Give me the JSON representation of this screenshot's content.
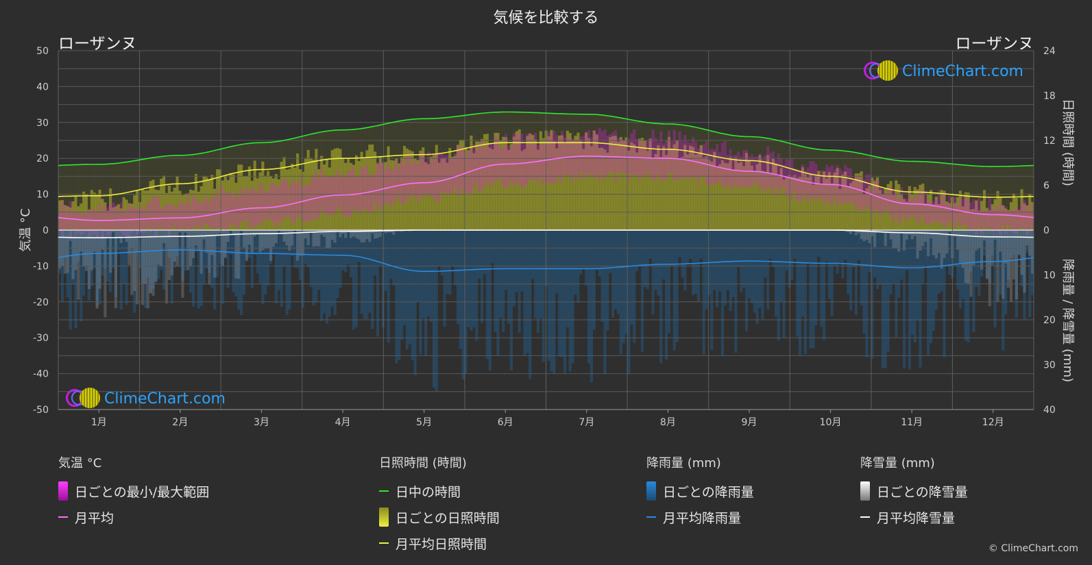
{
  "header": {
    "title": "気候を比較する",
    "city_left": "ローザンヌ",
    "city_right": "ローザンヌ"
  },
  "logo_text": "ClimeChart.com",
  "copyright": "© ClimeChart.com",
  "colors": {
    "background": "#2d2d2d",
    "temp_range": "#e020e0",
    "temp_avg": "#ff70ff",
    "daylight": "#2ee82e",
    "sunshine_bar": "#b8b82a",
    "sunshine_avg": "#f0f040",
    "rain_bar": "#1f6fb0",
    "rain_avg": "#2a8ae0",
    "snow_bar": "#bbbbbb",
    "snow_avg": "#ffffff",
    "logo_text": "#2aa4ff"
  },
  "legend": {
    "temperature": {
      "title": "気温 °C",
      "items": [
        "日ごとの最小/最大範囲",
        "月平均"
      ]
    },
    "sunshine": {
      "title": "日照時間 (時間)",
      "items": [
        "日中の時間",
        "日ごとの日照時間",
        "月平均日照時間"
      ]
    },
    "rain": {
      "title": "降雨量 (mm)",
      "items": [
        "日ごとの降雨量",
        "月平均降雨量"
      ]
    },
    "snow": {
      "title": "降雪量 (mm)",
      "items": [
        "日ごとの降雪量",
        "月平均降雪量"
      ]
    }
  },
  "chart_data": {
    "type": "line",
    "title": "気候を比較する",
    "categories": [
      "1月",
      "2月",
      "3月",
      "4月",
      "5月",
      "6月",
      "7月",
      "8月",
      "9月",
      "10月",
      "11月",
      "12月"
    ],
    "y_left": {
      "label": "気温 °C",
      "range": [
        -50,
        50
      ],
      "ticks": [
        50,
        40,
        30,
        20,
        10,
        0,
        -10,
        -20,
        -30,
        -40,
        -50
      ]
    },
    "y_right_top": {
      "label": "日照時間 (時間)",
      "range": [
        0,
        24
      ],
      "ticks": [
        24,
        18,
        12,
        6,
        0
      ]
    },
    "y_right_bottom": {
      "label": "降雨量 / 降雪量 (mm)",
      "range": [
        0,
        40
      ],
      "ticks": [
        0,
        10,
        20,
        30,
        40
      ]
    },
    "grid": true,
    "series": [
      {
        "name": "日中の時間",
        "axis": "sunshine_hours",
        "values": [
          8.8,
          10.0,
          11.7,
          13.4,
          14.9,
          15.8,
          15.5,
          14.2,
          12.5,
          10.7,
          9.2,
          8.5
        ]
      },
      {
        "name": "月平均日照時間",
        "axis": "sunshine_hours",
        "values": [
          4.6,
          6.2,
          8.1,
          9.6,
          10.1,
          11.7,
          11.7,
          10.8,
          9.3,
          7.2,
          5.1,
          4.4
        ]
      },
      {
        "name": "月平均",
        "axis": "temperature_c",
        "values": [
          2.7,
          3.4,
          6.2,
          9.8,
          13.2,
          18.4,
          20.6,
          20.0,
          16.4,
          12.7,
          7.3,
          4.3
        ]
      },
      {
        "name": "月平均降雨量",
        "axis": "precip_mm",
        "values": [
          5.2,
          4.4,
          5.2,
          5.6,
          9.2,
          8.6,
          8.6,
          7.6,
          6.9,
          7.4,
          8.4,
          7.0
        ]
      },
      {
        "name": "月平均降雪量",
        "axis": "precip_mm",
        "values": [
          1.7,
          1.4,
          0.8,
          0.3,
          0.0,
          0.0,
          0.0,
          0.0,
          0.0,
          0.0,
          0.6,
          1.5
        ]
      }
    ],
    "daily_temp_range_monthly": {
      "min": [
        -1,
        0,
        2,
        5,
        9,
        13,
        15,
        15,
        12,
        8,
        3,
        0
      ],
      "max": [
        6,
        8,
        12,
        16,
        20,
        25,
        27,
        26,
        22,
        17,
        10,
        7
      ]
    },
    "daily_sunshine_monthly": [
      4,
      6,
      8,
      10,
      10,
      12,
      12,
      11,
      9,
      7,
      5,
      4
    ]
  }
}
